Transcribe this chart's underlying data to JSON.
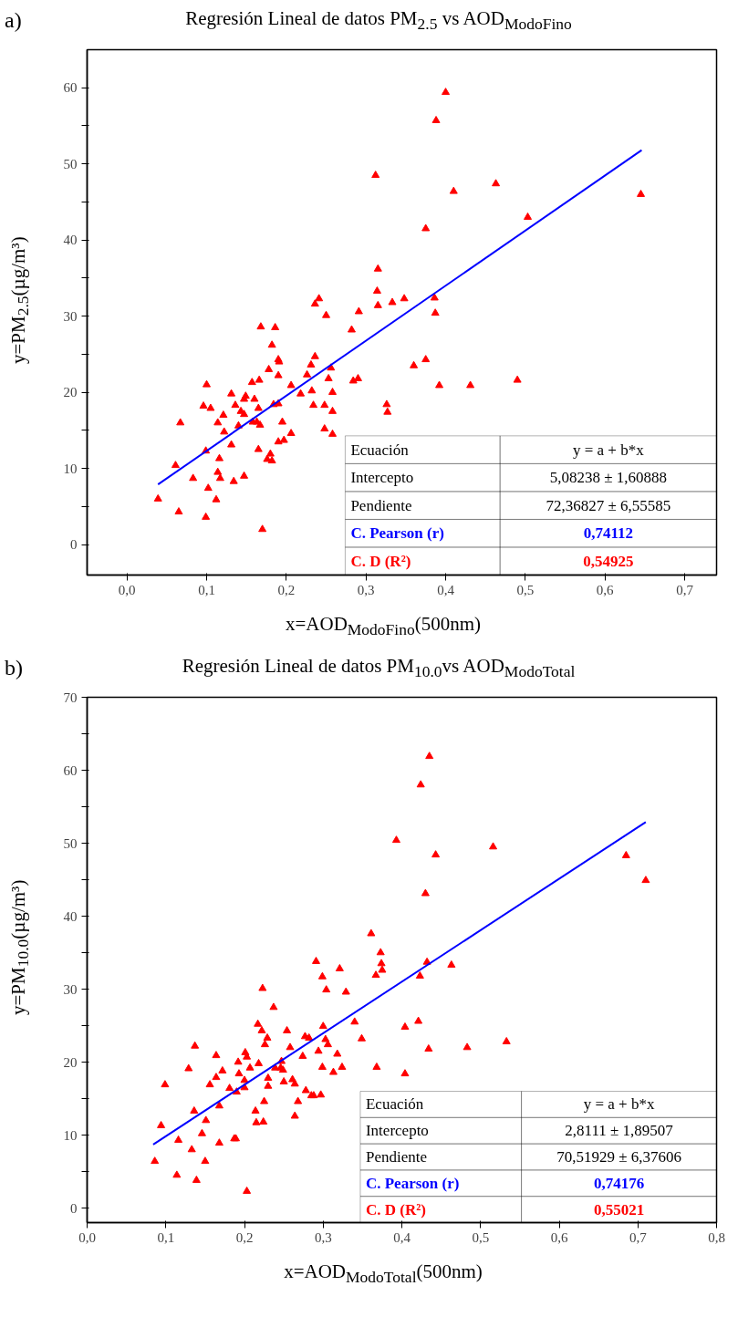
{
  "chart_data": [
    {
      "type": "scatter",
      "title": "Regresión Lineal de datos PM$_{2.5}$ vs AOD$_{ModoFino}$",
      "xlabel": "x=AOD$_{ModoFino}$(500nm)",
      "ylabel": "y=PM$_{2.5}$(µg/m³)",
      "grid": false,
      "annotations": [
        "a)",
        "Ecuación",
        "y = a + b*x",
        "Intercepto",
        "5,08238 ± 1,60888",
        "Pendiente",
        "72,36827 ± 6,55585",
        "C. Pearson (r)",
        "0,74112",
        "C. D (R²)",
        "0,54925"
      ],
      "xlim": [
        -0.05,
        0.74
      ],
      "ylim": [
        -4,
        65
      ],
      "xticks": [
        {
          "value": 0,
          "label": "0,0"
        },
        {
          "value": 0.1,
          "label": "0,1"
        },
        {
          "value": 0.2,
          "label": "0,2"
        },
        {
          "value": 0.3,
          "label": "0,3"
        },
        {
          "value": 0.4,
          "label": "0,4"
        },
        {
          "value": 0.5,
          "label": "0,5"
        },
        {
          "value": 0.6,
          "label": "0,6"
        },
        {
          "value": 0.7,
          "label": "0,7"
        }
      ],
      "yticks": [
        0,
        {
          "value": 5,
          "label": null
        },
        10,
        {
          "value": 15,
          "label": null
        },
        20,
        {
          "value": 25,
          "label": null
        },
        30,
        {
          "value": 35,
          "label": null
        },
        40,
        {
          "value": 45,
          "label": null
        },
        50,
        {
          "value": 55,
          "label": null
        },
        60
      ],
      "series": [
        {
          "marker": "triangle",
          "color": "#ff0000",
          "x": [
            0.039,
            0.061,
            0.067,
            0.065,
            0.083,
            0.096,
            0.099,
            0.099,
            0.1,
            0.102,
            0.105,
            0.112,
            0.114,
            0.116,
            0.114,
            0.117,
            0.121,
            0.122,
            0.131,
            0.131,
            0.134,
            0.136,
            0.14,
            0.143,
            0.147,
            0.147,
            0.149,
            0.147,
            0.157,
            0.158,
            0.16,
            0.163,
            0.165,
            0.165,
            0.166,
            0.168,
            0.17,
            0.167,
            0.4,
            0.388,
            0.312,
            0.463,
            0.41,
            0.503,
            0.375,
            0.315,
            0.314,
            0.315,
            0.333,
            0.348,
            0.386,
            0.387,
            0.282,
            0.291,
            0.241,
            0.236,
            0.25,
            0.236,
            0.231,
            0.226,
            0.256,
            0.253,
            0.206,
            0.218,
            0.232,
            0.258,
            0.234,
            0.248,
            0.258,
            0.248,
            0.258,
            0.284,
            0.29,
            0.36,
            0.375,
            0.392,
            0.431,
            0.49,
            0.326,
            0.327,
            0.186,
            0.182,
            0.19,
            0.191,
            0.178,
            0.19,
            0.184,
            0.19,
            0.195,
            0.19,
            0.197,
            0.206,
            0.176,
            0.18,
            0.182,
            0.645
          ],
          "values": [
            6.0,
            10.4,
            16.0,
            4.3,
            8.7,
            18.2,
            12.3,
            3.6,
            21.0,
            7.4,
            17.9,
            5.9,
            16.0,
            11.3,
            9.5,
            8.7,
            17.0,
            14.8,
            19.8,
            13.1,
            8.3,
            18.3,
            15.6,
            17.5,
            9.0,
            19.1,
            19.5,
            17.1,
            21.3,
            16.1,
            19.1,
            16.1,
            12.5,
            17.9,
            21.6,
            28.6,
            2.0,
            15.7,
            59.4,
            55.7,
            48.5,
            47.4,
            46.4,
            43.0,
            41.5,
            36.2,
            33.3,
            31.4,
            31.8,
            32.3,
            32.4,
            30.4,
            28.2,
            30.6,
            32.3,
            31.6,
            30.1,
            24.7,
            23.6,
            22.3,
            23.2,
            21.8,
            20.9,
            19.8,
            20.2,
            20.0,
            18.3,
            18.3,
            17.5,
            15.2,
            14.5,
            21.5,
            21.8,
            23.5,
            24.3,
            20.9,
            20.9,
            21.6,
            18.4,
            17.4,
            28.5,
            26.2,
            24.3,
            24.0,
            23.0,
            22.2,
            18.4,
            18.5,
            16.1,
            13.5,
            13.7,
            14.6,
            11.2,
            11.9,
            11.0,
            46.0
          ]
        },
        {
          "type": "line",
          "color": "#0000ff",
          "x": [
            0.039,
            0.646
          ],
          "values": [
            7.9,
            51.8
          ]
        }
      ]
    },
    {
      "type": "scatter",
      "title": "Regresión Lineal de datos PM$_{10.0}$vs AOD$_{ModoTotal}$",
      "xlabel": "x=AOD$_{ModoTotal}$(500nm)",
      "ylabel": "y=PM$_{10.0}$(µg/m³)",
      "grid": false,
      "annotations": [
        "b)",
        "Ecuación",
        "y = a + b*x",
        "Intercepto",
        "2,8111 ± 1,89507",
        "Pendiente",
        "70,51929 ± 6,37606",
        "C. Pearson (r)",
        "0,74176",
        "C. D (R²)",
        "0,55021"
      ],
      "xlim": [
        0,
        0.8
      ],
      "ylim": [
        -2,
        70
      ],
      "xticks": [
        {
          "value": 0,
          "label": "0,0"
        },
        {
          "value": 0.1,
          "label": "0,1"
        },
        {
          "value": 0.2,
          "label": "0,2"
        },
        {
          "value": 0.3,
          "label": "0,3"
        },
        {
          "value": 0.4,
          "label": "0,4"
        },
        {
          "value": 0.5,
          "label": "0,5"
        },
        {
          "value": 0.6,
          "label": "0,6"
        },
        {
          "value": 0.7,
          "label": "0,7"
        },
        {
          "value": 0.8,
          "label": "0,8"
        }
      ],
      "yticks": [
        0,
        {
          "value": 5,
          "label": null
        },
        10,
        {
          "value": 15,
          "label": null
        },
        20,
        {
          "value": 25,
          "label": null
        },
        30,
        {
          "value": 35,
          "label": null
        },
        40,
        {
          "value": 45,
          "label": null
        },
        50,
        {
          "value": 55,
          "label": null
        },
        60,
        {
          "value": 65,
          "label": null
        },
        70
      ],
      "series": [
        {
          "marker": "triangle",
          "color": "#ff0000",
          "x": [
            0.086,
            0.094,
            0.099,
            0.114,
            0.116,
            0.129,
            0.133,
            0.136,
            0.137,
            0.139,
            0.146,
            0.15,
            0.151,
            0.156,
            0.164,
            0.164,
            0.168,
            0.168,
            0.172,
            0.181,
            0.187,
            0.189,
            0.19,
            0.192,
            0.193,
            0.2,
            0.2,
            0.201,
            0.203,
            0.203,
            0.207,
            0.214,
            0.215,
            0.217,
            0.218,
            0.222,
            0.223,
            0.224,
            0.225,
            0.226,
            0.229,
            0.23,
            0.23,
            0.237,
            0.239,
            0.246,
            0.247,
            0.249,
            0.25,
            0.254,
            0.258,
            0.261,
            0.264,
            0.264,
            0.268,
            0.274,
            0.277,
            0.278,
            0.282,
            0.285,
            0.291,
            0.299,
            0.304,
            0.321,
            0.329,
            0.3,
            0.303,
            0.306,
            0.294,
            0.299,
            0.313,
            0.318,
            0.324,
            0.288,
            0.297,
            0.34,
            0.349,
            0.361,
            0.373,
            0.374,
            0.375,
            0.367,
            0.368,
            0.393,
            0.404,
            0.404,
            0.435,
            0.424,
            0.443,
            0.516,
            0.43,
            0.432,
            0.423,
            0.463,
            0.421,
            0.434,
            0.483,
            0.533,
            0.685,
            0.71
          ],
          "values": [
            6.4,
            11.3,
            16.9,
            4.5,
            9.3,
            19.1,
            8.0,
            13.3,
            22.2,
            3.8,
            10.2,
            6.4,
            12.0,
            16.9,
            20.9,
            17.9,
            8.9,
            14.0,
            18.8,
            16.4,
            9.5,
            9.5,
            15.9,
            20.0,
            18.4,
            17.5,
            16.5,
            21.3,
            20.7,
            2.3,
            19.2,
            13.3,
            11.7,
            25.2,
            19.8,
            24.3,
            30.1,
            11.8,
            14.6,
            22.4,
            23.3,
            17.8,
            16.7,
            27.5,
            19.2,
            19.2,
            20.1,
            18.9,
            17.3,
            24.3,
            22.0,
            17.6,
            17.0,
            12.6,
            14.6,
            20.8,
            23.5,
            16.1,
            23.3,
            15.4,
            33.8,
            31.7,
            29.9,
            32.8,
            29.6,
            24.9,
            23.1,
            22.4,
            21.5,
            19.3,
            18.6,
            21.1,
            19.3,
            15.4,
            15.5,
            25.5,
            23.2,
            37.6,
            35.0,
            33.5,
            32.6,
            31.9,
            19.3,
            50.4,
            24.8,
            18.4,
            61.9,
            58.0,
            48.4,
            49.5,
            43.1,
            33.7,
            31.8,
            33.3,
            25.6,
            21.8,
            22.0,
            22.8,
            48.3,
            44.9
          ]
        },
        {
          "type": "line",
          "color": "#0000ff",
          "x": [
            0.084,
            0.71
          ],
          "values": [
            8.7,
            52.9
          ]
        }
      ]
    }
  ]
}
